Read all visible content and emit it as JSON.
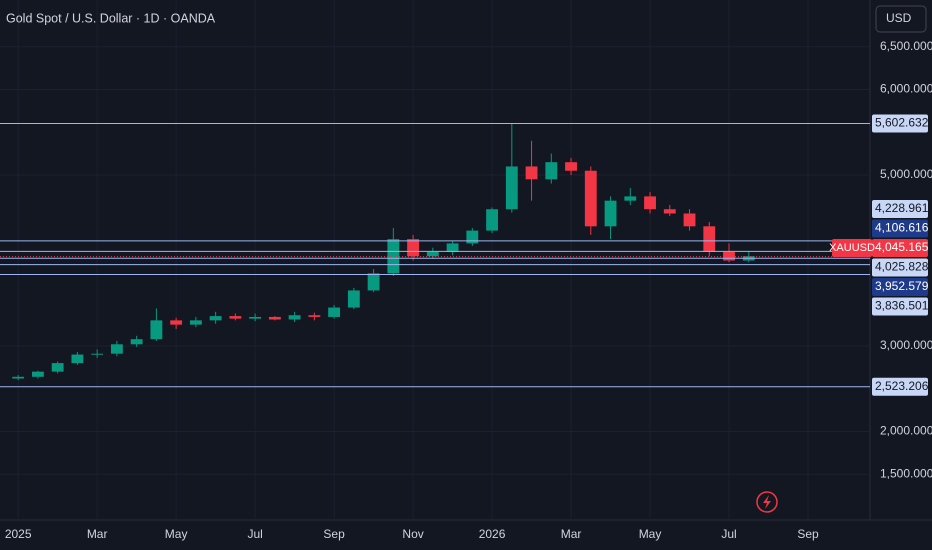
{
  "chart_data": {
    "type": "candlestick",
    "title": "Gold Spot / U.S. Dollar · 1D · OANDA",
    "currency": "USD",
    "symbol": "XAUUSD",
    "up_color": "#089981",
    "down_color": "#f23645",
    "x": [
      0,
      0.5,
      1,
      1.5,
      2,
      2.5,
      3,
      3.5,
      4,
      4.5,
      5,
      5.5,
      6,
      6.5,
      7,
      7.5,
      8,
      8.5,
      9,
      9.5,
      10,
      10.5,
      11,
      11.5,
      12,
      12.5,
      13,
      13.5,
      14,
      14.5,
      15,
      15.5,
      16,
      16.5,
      17,
      17.5,
      18,
      18.5
    ],
    "open": [
      2620,
      2640,
      2700,
      2800,
      2900,
      2910,
      3020,
      3080,
      3300,
      3250,
      3300,
      3350,
      3320,
      3340,
      3310,
      3360,
      3340,
      3450,
      3650,
      3850,
      4250,
      4050,
      4100,
      4200,
      4350,
      4600,
      5100,
      4950,
      5150,
      5050,
      4400,
      4700,
      4750,
      4600,
      4550,
      4400,
      4100,
      4000
    ],
    "high": [
      2660,
      2710,
      2820,
      2930,
      2960,
      3060,
      3120,
      3440,
      3330,
      3340,
      3400,
      3380,
      3380,
      3350,
      3400,
      3390,
      3480,
      3680,
      3900,
      4380,
      4300,
      4150,
      4230,
      4380,
      4620,
      5600,
      5400,
      5250,
      5200,
      5100,
      4750,
      4850,
      4800,
      4650,
      4600,
      4450,
      4200,
      4100
    ],
    "low": [
      2600,
      2620,
      2680,
      2780,
      2860,
      2880,
      2990,
      3060,
      3200,
      3220,
      3260,
      3300,
      3290,
      3300,
      3280,
      3300,
      3320,
      3430,
      3630,
      3820,
      4000,
      4020,
      4060,
      4170,
      4320,
      4560,
      4700,
      4900,
      5000,
      4300,
      4250,
      4650,
      4550,
      4520,
      4350,
      4050,
      3980,
      3980
    ],
    "close": [
      2640,
      2700,
      2800,
      2900,
      2910,
      3020,
      3080,
      3300,
      3250,
      3300,
      3350,
      3320,
      3340,
      3310,
      3360,
      3340,
      3450,
      3650,
      3850,
      4250,
      4050,
      4100,
      4200,
      4350,
      4600,
      5100,
      4950,
      5150,
      5050,
      4400,
      4700,
      4750,
      4600,
      4550,
      4400,
      4100,
      4000,
      4050
    ],
    "xlim": [
      -0.46,
      21.57
    ],
    "ylim": [
      965,
      7047
    ],
    "xticks": [
      {
        "value": 0,
        "label": "2025"
      },
      {
        "value": 2,
        "label": "Mar"
      },
      {
        "value": 4,
        "label": "May"
      },
      {
        "value": 6,
        "label": "Jul"
      },
      {
        "value": 8,
        "label": "Sep"
      },
      {
        "value": 10,
        "label": "Nov"
      },
      {
        "value": 12,
        "label": "2026"
      },
      {
        "value": 14,
        "label": "Mar"
      },
      {
        "value": 16,
        "label": "May"
      },
      {
        "value": 18,
        "label": "Jul"
      },
      {
        "value": 20,
        "label": "Sep"
      }
    ],
    "yticks": [
      {
        "value": 1500,
        "label": "1,500.000"
      },
      {
        "value": 2000,
        "label": "2,000.000"
      },
      {
        "value": 3000,
        "label": "3,000.000"
      },
      {
        "value": 5000,
        "label": "5,000.000"
      },
      {
        "value": 6000,
        "label": "6,000.000"
      },
      {
        "value": 6500,
        "label": "6,500.000"
      }
    ],
    "levels": [
      {
        "value": 5602.632,
        "label": "5,602.632",
        "color": "#9db6f0",
        "label_bg": "#c9d7f7",
        "label_color": "#131722"
      },
      {
        "value": 4228.961,
        "label": "4,228.961",
        "color": "#9db6f0",
        "label_bg": "#c9d7f7",
        "label_color": "#131722"
      },
      {
        "value": 4106.616,
        "label": "4,106.616",
        "color": "#9db6f0",
        "label_bg": "#1e3a8a",
        "label_color": "#ffffff"
      },
      {
        "value": 4045.165,
        "label": "4,045.165",
        "color": "#f23645",
        "label_bg": "#f23645",
        "label_color": "#ffffff",
        "current": true
      },
      {
        "value": 4025.828,
        "label": "4,025.828",
        "color": "#9db6f0",
        "label_bg": "#c9d7f7",
        "label_color": "#131722"
      },
      {
        "value": 3952.579,
        "label": "3,952.579",
        "color": "#9db6f0",
        "label_bg": "#1e3a8a",
        "label_color": "#ffffff"
      },
      {
        "value": 3836.501,
        "label": "3,836.501",
        "color": "#9db6f0",
        "label_bg": "#c9d7f7",
        "label_color": "#131722"
      },
      {
        "value": 2523.206,
        "label": "2,523.206",
        "color": "#9db6f0",
        "label_bg": "#c9d7f7",
        "label_color": "#131722"
      }
    ]
  }
}
